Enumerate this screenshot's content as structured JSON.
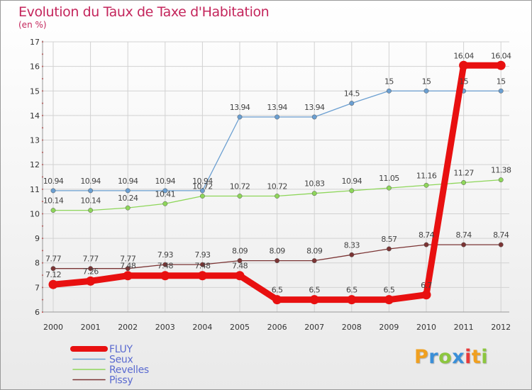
{
  "title": "Evolution du Taux de Taxe d'Habitation",
  "subtitle": "(en %)",
  "logo_text": "Proxiti",
  "chart_data": {
    "type": "line",
    "title": "Evolution du Taux de Taxe d'Habitation",
    "subtitle": "(en %)",
    "x": [
      "2000",
      "2001",
      "2002",
      "2003",
      "2004",
      "2005",
      "2006",
      "2007",
      "2008",
      "2009",
      "2010",
      "2011",
      "2012"
    ],
    "ylim": [
      6,
      17
    ],
    "yticks": [
      6,
      7,
      8,
      9,
      10,
      11,
      12,
      13,
      14,
      15,
      16,
      17
    ],
    "grid": true,
    "legend_position": "bottom-left",
    "series": [
      {
        "name": "FLUY",
        "color": "#e81010",
        "width": 9,
        "values": [
          7.12,
          7.26,
          7.48,
          7.48,
          7.48,
          7.48,
          6.5,
          6.5,
          6.5,
          6.5,
          6.7,
          16.04,
          16.04
        ],
        "labels": [
          "7.12",
          "7.26",
          "7.48",
          "7.48",
          "7.48",
          "7.48",
          "6.5",
          "6.5",
          "6.5",
          "6.5",
          "6.7",
          "16.04",
          "16.04"
        ]
      },
      {
        "name": "Seux",
        "color": "#6b9fd1",
        "width": 1.3,
        "values": [
          10.94,
          10.94,
          10.94,
          10.94,
          10.94,
          13.94,
          13.94,
          13.94,
          14.5,
          15,
          15,
          15,
          15
        ],
        "labels": [
          "10.94",
          "10.94",
          "10.94",
          "10.94",
          "10.94",
          "13.94",
          "13.94",
          "13.94",
          "14.5",
          "15",
          "15",
          "15",
          "15"
        ]
      },
      {
        "name": "Revelles",
        "color": "#8ed65a",
        "width": 1.3,
        "values": [
          10.14,
          10.14,
          10.24,
          10.41,
          10.72,
          10.72,
          10.72,
          10.83,
          10.94,
          11.05,
          11.16,
          11.27,
          11.38
        ],
        "labels": [
          "10.14",
          "10.14",
          "10.24",
          "10.41",
          "10.72",
          "10.72",
          "10.72",
          "10.83",
          "10.94",
          "11.05",
          "11.16",
          "11.27",
          "11.38"
        ]
      },
      {
        "name": "Pissy",
        "color": "#7b3434",
        "width": 1.3,
        "values": [
          7.77,
          7.77,
          7.77,
          7.93,
          7.93,
          8.09,
          8.09,
          8.09,
          8.33,
          8.57,
          8.74,
          8.74,
          8.74
        ],
        "labels": [
          "7.77",
          "7.77",
          "7.77",
          "7.93",
          "7.93",
          "8.09",
          "8.09",
          "8.09",
          "8.33",
          "8.57",
          "8.74",
          "8.74",
          "8.74"
        ]
      }
    ]
  }
}
